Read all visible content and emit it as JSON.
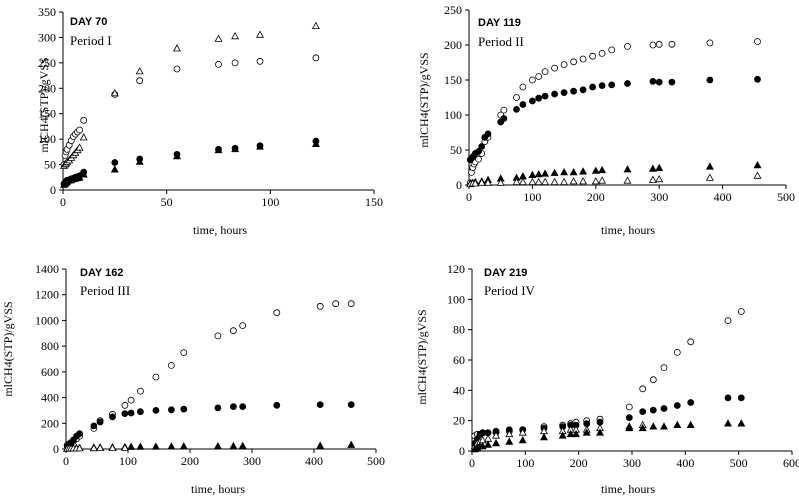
{
  "chart_data": [
    {
      "type": "scatter",
      "annotations": [
        "DAY 70",
        "Period I"
      ],
      "xlabel": "time, hours",
      "ylabel": "mlCH4(STP)/gVSS",
      "xlim": [
        0,
        150
      ],
      "ylim": [
        0,
        350
      ],
      "xticks": [
        0,
        50,
        100,
        150
      ],
      "yticks": [
        0,
        50,
        100,
        150,
        200,
        250,
        300,
        350
      ],
      "series": [
        {
          "marker": "circle-open",
          "x": [
            0.5,
            1,
            1.5,
            2,
            3,
            4,
            5,
            6,
            7,
            8,
            10,
            25,
            37,
            55,
            75,
            83,
            95,
            122
          ],
          "y": [
            50,
            68,
            75,
            80,
            88,
            97,
            105,
            110,
            114,
            118,
            137,
            188,
            215,
            238,
            247,
            250,
            253,
            260
          ]
        },
        {
          "marker": "triangle-open",
          "x": [
            0.5,
            1,
            1.5,
            2,
            3,
            4,
            5,
            6,
            7,
            8,
            10,
            25,
            37,
            55,
            75,
            83,
            95,
            122
          ],
          "y": [
            47,
            50,
            52,
            55,
            58,
            63,
            68,
            73,
            78,
            83,
            103,
            190,
            233,
            278,
            297,
            302,
            305,
            322
          ]
        },
        {
          "marker": "circle-filled",
          "x": [
            0.5,
            1,
            1.5,
            2,
            3,
            4,
            5,
            6,
            7,
            8,
            10,
            25,
            37,
            55,
            75,
            83,
            95,
            122
          ],
          "y": [
            12,
            15,
            17,
            19,
            20,
            22,
            23,
            25,
            26,
            28,
            35,
            54,
            61,
            70,
            80,
            82,
            87,
            96
          ]
        },
        {
          "marker": "triangle-filled",
          "x": [
            0.5,
            1,
            1.5,
            2,
            3,
            4,
            5,
            6,
            7,
            8,
            10,
            25,
            37,
            55,
            75,
            83,
            95,
            122
          ],
          "y": [
            10,
            12,
            14,
            16,
            18,
            19,
            21,
            22,
            23,
            24,
            30,
            40,
            55,
            66,
            78,
            80,
            85,
            90
          ]
        }
      ]
    },
    {
      "type": "scatter",
      "annotations": [
        "DAY 119",
        "Period II"
      ],
      "xlabel": "time, hours",
      "ylabel": "mlCH4(STP)/gVSS",
      "xlim": [
        0,
        500
      ],
      "ylim": [
        0,
        250
      ],
      "xticks": [
        0,
        100,
        200,
        300,
        400,
        500
      ],
      "yticks": [
        0,
        50,
        100,
        150,
        200,
        250
      ],
      "series": [
        {
          "marker": "circle-open",
          "x": [
            2,
            4,
            6,
            8,
            10,
            15,
            20,
            25,
            30,
            50,
            55,
            75,
            85,
            100,
            110,
            120,
            135,
            150,
            165,
            180,
            195,
            210,
            225,
            250,
            290,
            300,
            320,
            380,
            455
          ],
          "y": [
            3,
            18,
            25,
            30,
            33,
            37,
            45,
            62,
            68,
            100,
            107,
            125,
            140,
            150,
            155,
            162,
            167,
            172,
            176,
            180,
            184,
            188,
            193,
            198,
            200,
            201,
            201,
            203,
            205
          ]
        },
        {
          "marker": "circle-filled",
          "x": [
            2,
            4,
            6,
            8,
            10,
            15,
            20,
            25,
            30,
            50,
            55,
            75,
            85,
            100,
            110,
            120,
            135,
            150,
            165,
            180,
            195,
            210,
            225,
            250,
            290,
            300,
            320,
            380,
            455
          ],
          "y": [
            36,
            38,
            40,
            42,
            45,
            48,
            55,
            68,
            73,
            90,
            95,
            108,
            115,
            120,
            124,
            127,
            130,
            132,
            134,
            136,
            140,
            142,
            143,
            145,
            148,
            147,
            147,
            150,
            151
          ]
        },
        {
          "marker": "triangle-filled",
          "x": [
            2,
            6,
            10,
            20,
            30,
            50,
            75,
            85,
            100,
            110,
            120,
            135,
            150,
            165,
            180,
            200,
            210,
            250,
            290,
            300,
            380,
            455
          ],
          "y": [
            2,
            3,
            4,
            5,
            7,
            9,
            10,
            12,
            14,
            15,
            16,
            17,
            18,
            18,
            19,
            20,
            21,
            22,
            23,
            24,
            26,
            28
          ]
        },
        {
          "marker": "triangle-open",
          "x": [
            2,
            6,
            10,
            20,
            30,
            50,
            75,
            85,
            100,
            110,
            120,
            135,
            150,
            165,
            180,
            200,
            210,
            250,
            290,
            300,
            380,
            455
          ],
          "y": [
            1,
            2,
            2,
            3,
            3,
            3,
            4,
            4,
            4,
            4,
            4,
            4,
            4,
            5,
            5,
            5,
            6,
            6,
            7,
            8,
            10,
            13
          ]
        }
      ]
    },
    {
      "type": "scatter",
      "annotations": [
        "DAY 162",
        "Period III"
      ],
      "xlabel": "time, hours",
      "ylabel": "mlCH4(STP)/gVSS",
      "xlim": [
        0,
        500
      ],
      "ylim": [
        0,
        1400
      ],
      "xticks": [
        0,
        100,
        200,
        300,
        400,
        500
      ],
      "yticks": [
        0,
        200,
        400,
        600,
        800,
        1000,
        1200,
        1400
      ],
      "series": [
        {
          "marker": "circle-open",
          "x": [
            2,
            5,
            8,
            12,
            17,
            22,
            45,
            55,
            75,
            95,
            105,
            120,
            145,
            170,
            190,
            245,
            270,
            285,
            340,
            410,
            435,
            460
          ],
          "y": [
            30,
            40,
            50,
            60,
            80,
            100,
            160,
            220,
            270,
            340,
            380,
            450,
            560,
            650,
            750,
            880,
            920,
            960,
            1060,
            1110,
            1130,
            1130
          ]
        },
        {
          "marker": "circle-filled",
          "x": [
            2,
            5,
            8,
            12,
            17,
            22,
            45,
            55,
            75,
            95,
            105,
            120,
            145,
            170,
            190,
            245,
            270,
            285,
            340,
            410,
            460
          ],
          "y": [
            20,
            30,
            50,
            70,
            100,
            120,
            180,
            210,
            250,
            275,
            280,
            290,
            300,
            305,
            310,
            320,
            330,
            330,
            340,
            345,
            345
          ]
        },
        {
          "marker": "triangle-filled",
          "x": [
            2,
            5,
            8,
            12,
            17,
            22,
            45,
            55,
            75,
            95,
            105,
            120,
            145,
            170,
            190,
            245,
            270,
            285,
            410,
            460
          ],
          "y": [
            2,
            3,
            4,
            5,
            6,
            8,
            10,
            11,
            12,
            14,
            15,
            16,
            17,
            18,
            19,
            20,
            21,
            22,
            24,
            30
          ]
        },
        {
          "marker": "triangle-open",
          "x": [
            2,
            5,
            8,
            12,
            17,
            22,
            45,
            55,
            75,
            95
          ],
          "y": [
            1,
            2,
            2,
            3,
            3,
            4,
            5,
            6,
            6,
            7
          ]
        }
      ]
    },
    {
      "type": "scatter",
      "annotations": [
        "DAY 219",
        "Period IV"
      ],
      "xlabel": "time, hours",
      "ylabel": "mlCH4(STP)/gVSS",
      "xlim": [
        0,
        600
      ],
      "ylim": [
        0,
        120
      ],
      "xticks": [
        0,
        100,
        200,
        300,
        400,
        500,
        600
      ],
      "yticks": [
        0,
        20,
        40,
        60,
        80,
        100,
        120
      ],
      "series": [
        {
          "marker": "circle-open",
          "x": [
            5,
            10,
            15,
            20,
            30,
            45,
            70,
            95,
            135,
            170,
            185,
            195,
            215,
            240,
            295,
            320,
            340,
            360,
            385,
            410,
            480,
            505
          ],
          "y": [
            10,
            11,
            11,
            12,
            12,
            12,
            13,
            14,
            16,
            17,
            18,
            19,
            20,
            21,
            29,
            41,
            47,
            55,
            65,
            72,
            86,
            92
          ]
        },
        {
          "marker": "circle-filled",
          "x": [
            5,
            10,
            15,
            20,
            30,
            45,
            70,
            95,
            135,
            170,
            185,
            195,
            215,
            240,
            295,
            320,
            340,
            360,
            385,
            410,
            480,
            505
          ],
          "y": [
            5,
            8,
            11,
            12,
            12,
            13,
            14,
            14,
            15,
            16,
            17,
            17,
            18,
            19,
            22,
            26,
            27,
            28,
            30,
            32,
            35,
            35
          ]
        },
        {
          "marker": "triangle-open",
          "x": [
            5,
            10,
            15,
            20,
            30,
            45,
            70,
            95,
            135,
            170,
            185,
            195,
            215,
            240,
            295,
            320
          ],
          "y": [
            3,
            5,
            6,
            7,
            8,
            10,
            11,
            12,
            13,
            13,
            14,
            14,
            14,
            15,
            16,
            17
          ]
        },
        {
          "marker": "triangle-filled",
          "x": [
            5,
            10,
            15,
            20,
            30,
            45,
            70,
            95,
            135,
            170,
            185,
            195,
            215,
            240,
            295,
            320,
            340,
            360,
            385,
            410,
            480,
            505
          ],
          "y": [
            1,
            2,
            3,
            3,
            4,
            5,
            6,
            7,
            9,
            10,
            11,
            11,
            12,
            12,
            15,
            15,
            16,
            16,
            17,
            17,
            18,
            18
          ]
        }
      ]
    }
  ]
}
